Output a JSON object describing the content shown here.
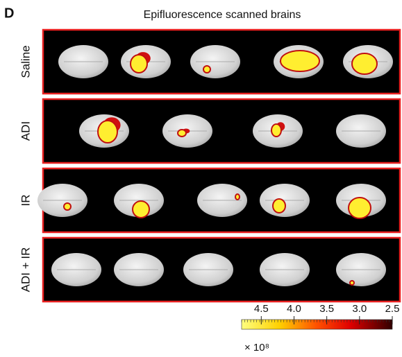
{
  "panel_label": "D",
  "title": "Epifluorescence scanned brains",
  "rows": [
    {
      "label": "Saline"
    },
    {
      "label": "ADI"
    },
    {
      "label": "IR"
    },
    {
      "label": "ADI + IR"
    }
  ],
  "colorbar": {
    "clim": [
      4.8,
      2.5
    ],
    "ticks": [
      {
        "value": 4.5,
        "label": "4.5"
      },
      {
        "value": 4.0,
        "label": "4.0"
      },
      {
        "value": 3.5,
        "label": "3.5"
      },
      {
        "value": 3.0,
        "label": "3.0"
      },
      {
        "value": 2.5,
        "label": "2.5"
      }
    ],
    "exponent_label": "× 10⁸"
  }
}
